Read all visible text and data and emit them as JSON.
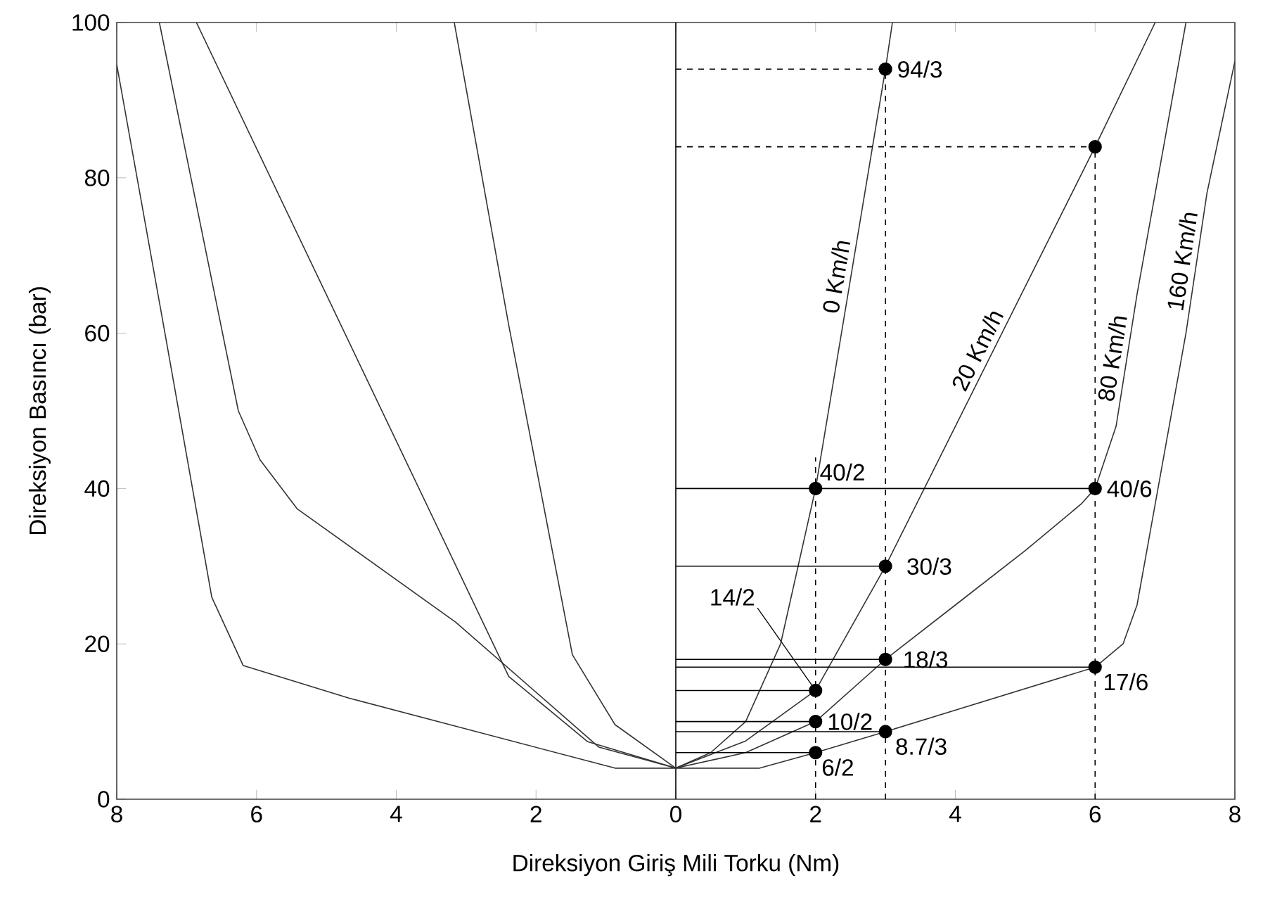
{
  "chart_data": {
    "type": "line",
    "xlabel": "Direksiyon Giriş Mili Torku (Nm)",
    "ylabel": "Direksiyon Basıncı (bar)",
    "xlim": [
      -8,
      8
    ],
    "xticks": [
      {
        "value": -8,
        "label": "8"
      },
      {
        "value": -6,
        "label": "6"
      },
      {
        "value": -4,
        "label": "4"
      },
      {
        "value": -2,
        "label": "2"
      },
      0,
      2,
      4,
      6,
      8
    ],
    "ylim": [
      0,
      100
    ],
    "yticks": [
      0,
      20,
      40,
      60,
      80,
      100
    ],
    "ref_lines": [
      {
        "axis": "x",
        "value": 0
      }
    ],
    "series": [
      {
        "name": "0 Km/h",
        "color": "#333333",
        "x": [
          -3.17,
          -2.39,
          -1.48,
          -0.87,
          0,
          0.5,
          1,
          1.5,
          2,
          3,
          3.1
        ],
        "values": [
          100,
          61,
          18.6,
          9.6,
          4,
          6,
          10,
          20,
          40,
          94,
          100
        ]
      },
      {
        "name": "20 Km/h",
        "color": "#333333",
        "x": [
          -6.86,
          -2.39,
          -1.26,
          0,
          1,
          2,
          3,
          4,
          5,
          6,
          6.86
        ],
        "values": [
          100,
          15.8,
          7.4,
          4,
          7.5,
          14,
          30,
          48,
          66,
          84,
          100
        ]
      },
      {
        "name": "80 Km/h",
        "color": "#333333",
        "x": [
          -7.39,
          -6.26,
          -5.95,
          -5.42,
          -3.15,
          -1.1,
          0,
          1,
          2,
          3,
          4,
          5,
          5.8,
          6,
          6.3,
          6.6,
          7,
          7.3
        ],
        "values": [
          100,
          50,
          43.7,
          37.4,
          22.8,
          6.7,
          4,
          6,
          10,
          18,
          25,
          32,
          38,
          40,
          48,
          65,
          85,
          100
        ]
      },
      {
        "name": "160 Km/h",
        "color": "#333333",
        "x": [
          -8,
          -7.31,
          -6.64,
          -6.19,
          -4.67,
          -0.87,
          1.2,
          2,
          3,
          6,
          6.4,
          6.6,
          6.8,
          7,
          7.3,
          7.6,
          8
        ],
        "values": [
          94.6,
          60,
          26,
          17.2,
          13,
          4,
          4,
          6,
          8.7,
          17,
          20,
          25,
          35,
          45,
          60,
          78,
          95
        ]
      },
      {
        "line_style": "solid",
        "color": "#000000",
        "x": [
          0,
          6
        ],
        "values": [
          40,
          40
        ]
      },
      {
        "line_style": "solid",
        "color": "#000000",
        "x": [
          0,
          3
        ],
        "values": [
          30,
          30
        ]
      },
      {
        "line_style": "solid",
        "color": "#000000",
        "x": [
          0,
          3
        ],
        "values": [
          18,
          18
        ]
      },
      {
        "line_style": "solid",
        "color": "#000000",
        "x": [
          0,
          6
        ],
        "values": [
          17,
          17
        ]
      },
      {
        "line_style": "solid",
        "color": "#000000",
        "x": [
          0,
          2
        ],
        "values": [
          14,
          14
        ]
      },
      {
        "line_style": "solid",
        "color": "#000000",
        "x": [
          0,
          2
        ],
        "values": [
          10,
          10
        ]
      },
      {
        "line_style": "solid",
        "color": "#000000",
        "x": [
          0,
          3
        ],
        "values": [
          8.7,
          8.7
        ]
      },
      {
        "line_style": "solid",
        "color": "#000000",
        "x": [
          0,
          2
        ],
        "values": [
          6,
          6
        ]
      },
      {
        "line_style": "dashed",
        "color": "#000000",
        "x": [
          0,
          3
        ],
        "values": [
          94,
          94
        ]
      },
      {
        "line_style": "dashed",
        "color": "#000000",
        "x": [
          0,
          6
        ],
        "values": [
          84,
          84
        ]
      },
      {
        "line_style": "dashed",
        "color": "#000000",
        "x": [
          2,
          2
        ],
        "values": [
          0,
          44
        ]
      },
      {
        "line_style": "dashed",
        "color": "#000000",
        "x": [
          3,
          3
        ],
        "values": [
          0,
          94
        ]
      },
      {
        "line_style": "dashed",
        "color": "#000000",
        "x": [
          6,
          6
        ],
        "values": [
          0,
          84
        ]
      },
      {
        "type": "scatter",
        "marker": "circle",
        "color": "#000000",
        "x": [
          2,
          3,
          2,
          3,
          6,
          2,
          3,
          6,
          2,
          3,
          6
        ],
        "values": [
          40,
          94,
          14,
          30,
          84,
          10,
          18,
          40,
          6,
          8.7,
          17
        ]
      }
    ],
    "annotations": [
      {
        "text": "40/2",
        "x": 2,
        "y": 40
      },
      {
        "text": "94/3",
        "x": 3,
        "y": 94
      },
      {
        "text": "14/2",
        "x": 2,
        "y": 14
      },
      {
        "text": "30/3",
        "x": 3,
        "y": 30
      },
      {
        "text": "10/2",
        "x": 2,
        "y": 10
      },
      {
        "text": "18/3",
        "x": 3,
        "y": 18
      },
      {
        "text": "40/6",
        "x": 6,
        "y": 40
      },
      {
        "text": "6/2",
        "x": 2,
        "y": 6
      },
      {
        "text": "8.7/3",
        "x": 3,
        "y": 8.7
      },
      {
        "text": "17/6",
        "x": 6,
        "y": 17
      }
    ]
  }
}
